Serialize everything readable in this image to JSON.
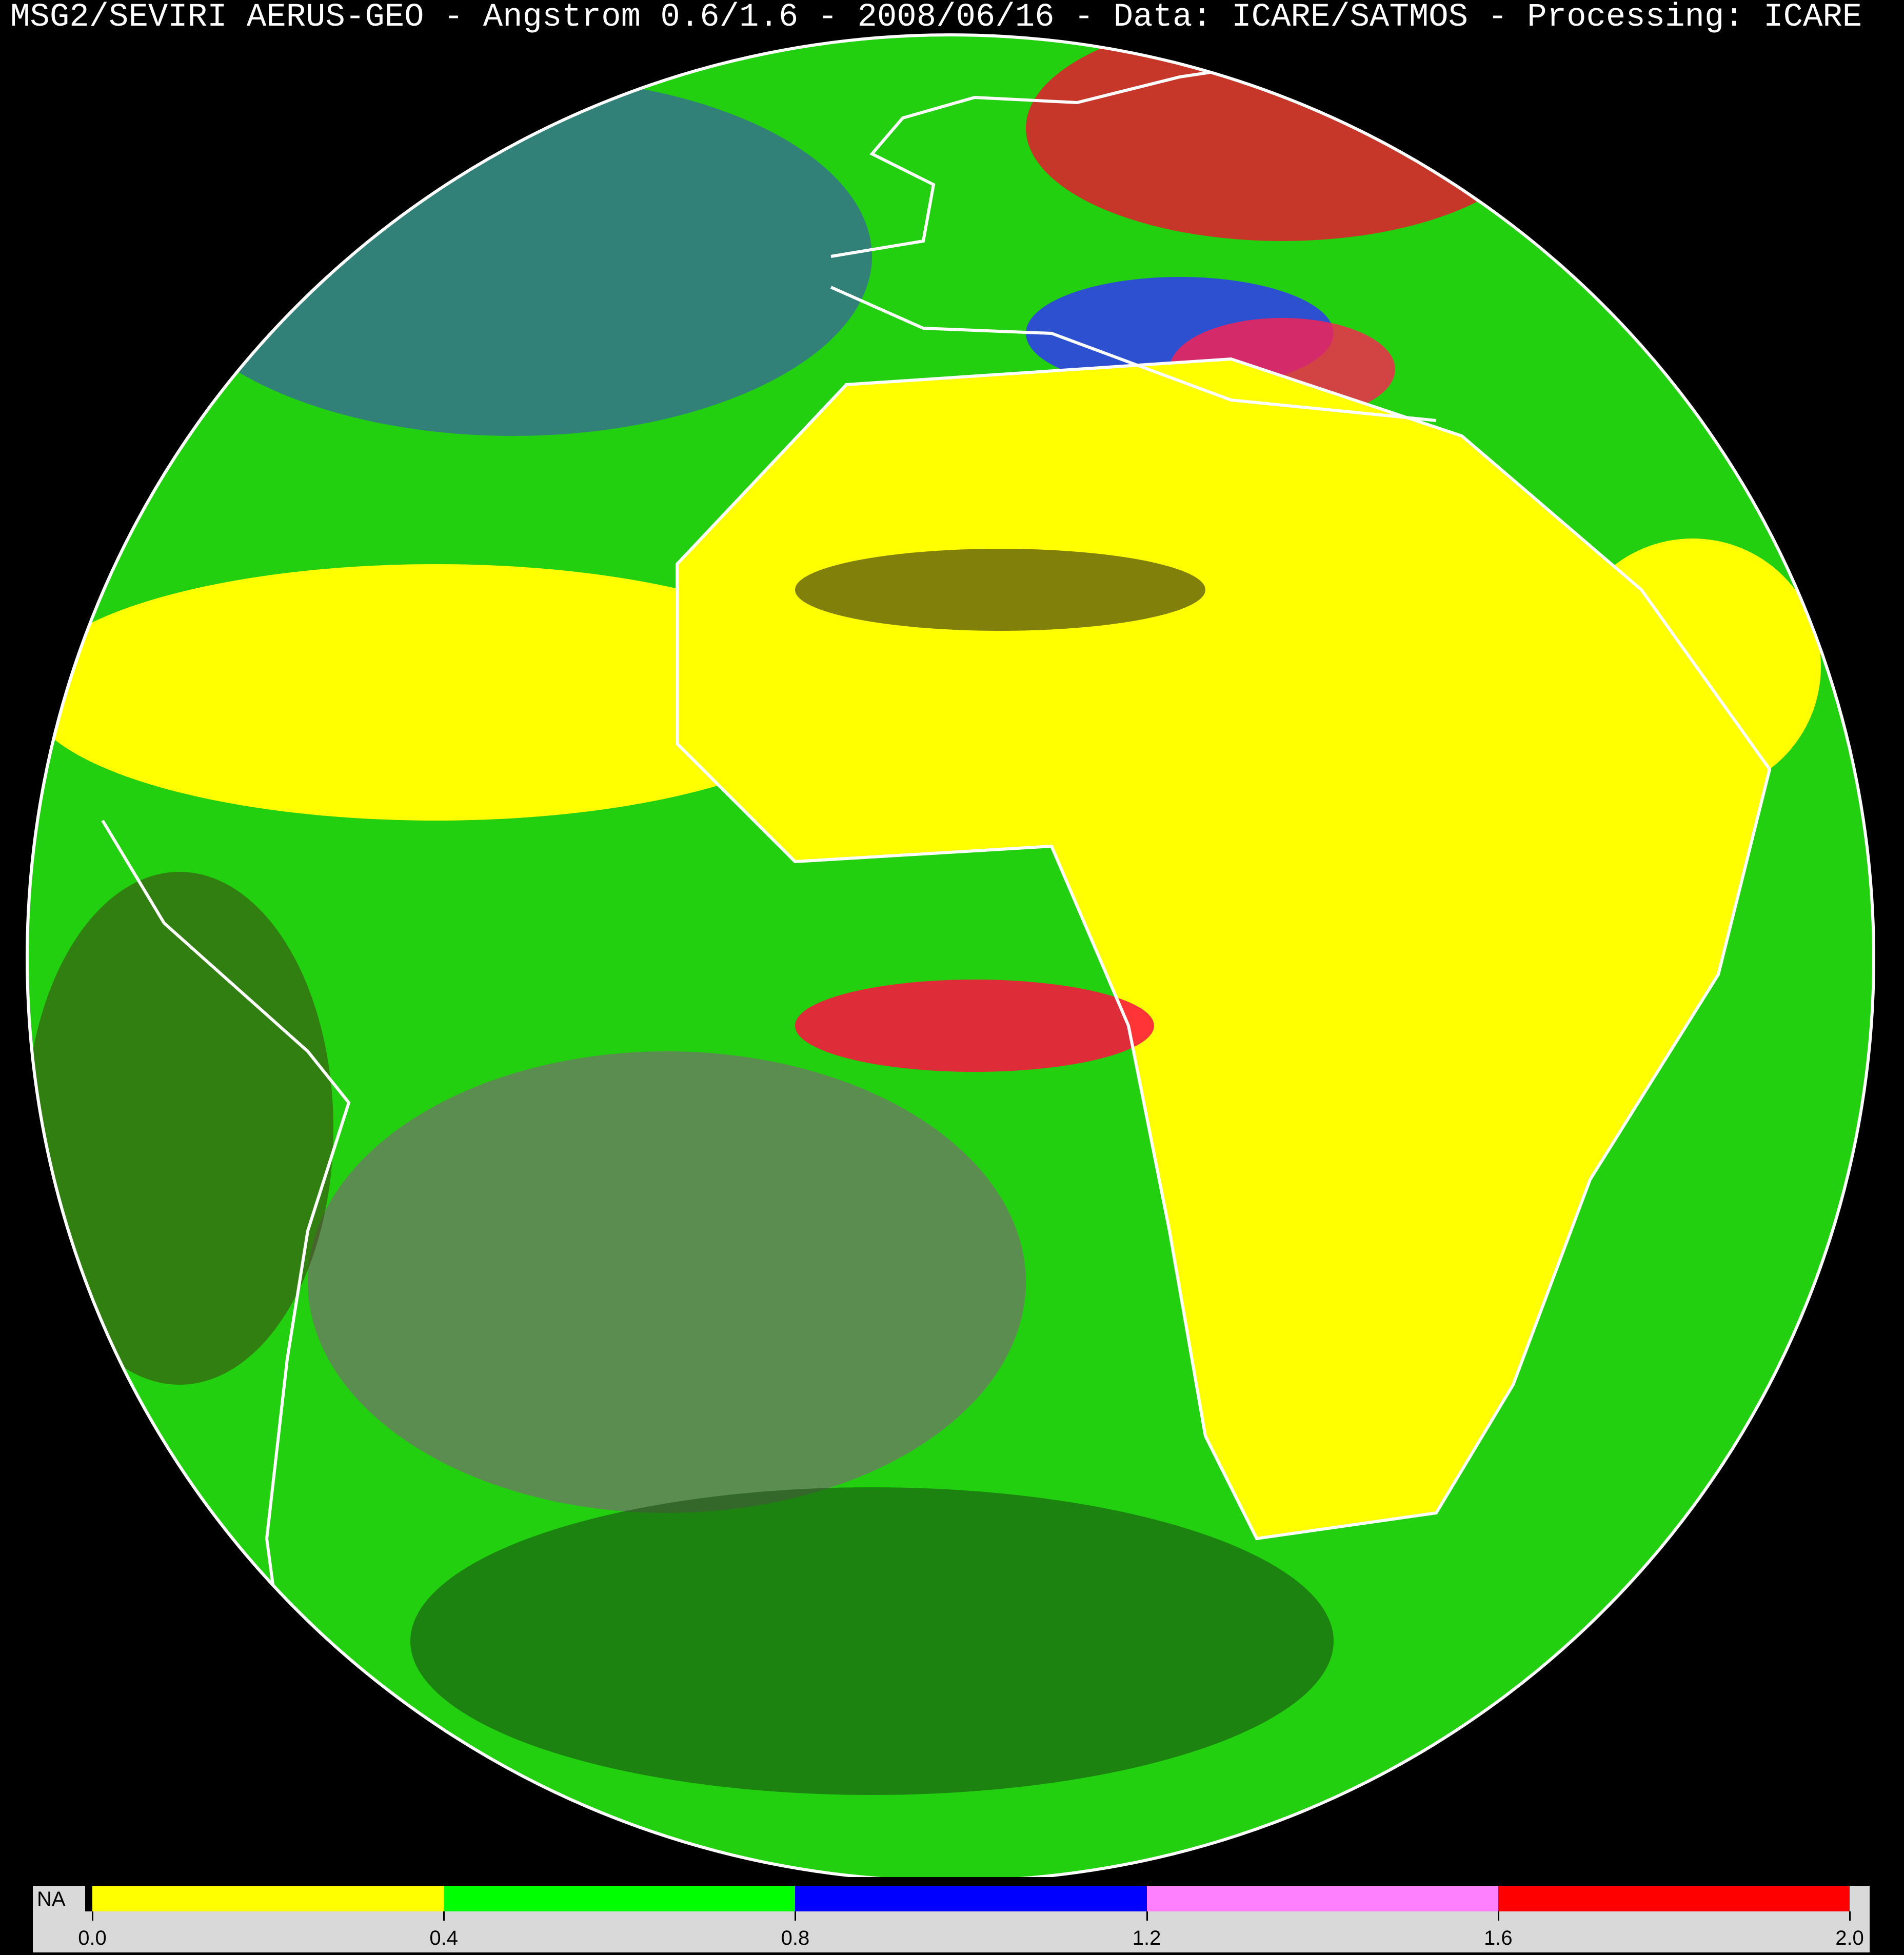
{
  "title": "MSG2/SEVIRI AERUS-GEO - Angstrom 0.6/1.6 - 2008/06/16 - Data: ICARE/SATMOS - Processing: ICARE",
  "legend": {
    "na_label": "NA",
    "na_color": "#000000",
    "bins": [
      {
        "from": 0.0,
        "to": 0.4,
        "color": "#ffff00"
      },
      {
        "from": 0.4,
        "to": 0.8,
        "color": "#00ff00"
      },
      {
        "from": 0.8,
        "to": 1.2,
        "color": "#0000ff"
      },
      {
        "from": 1.2,
        "to": 1.6,
        "color": "#ff80ff"
      },
      {
        "from": 1.6,
        "to": 2.0,
        "color": "#ff0000"
      }
    ],
    "ticks": [
      "0.0",
      "0.4",
      "0.8",
      "1.2",
      "1.6",
      "2.0"
    ]
  },
  "map": {
    "projection": "geostationary full disk",
    "coastline_color": "#ffffff",
    "background": "#000000"
  }
}
